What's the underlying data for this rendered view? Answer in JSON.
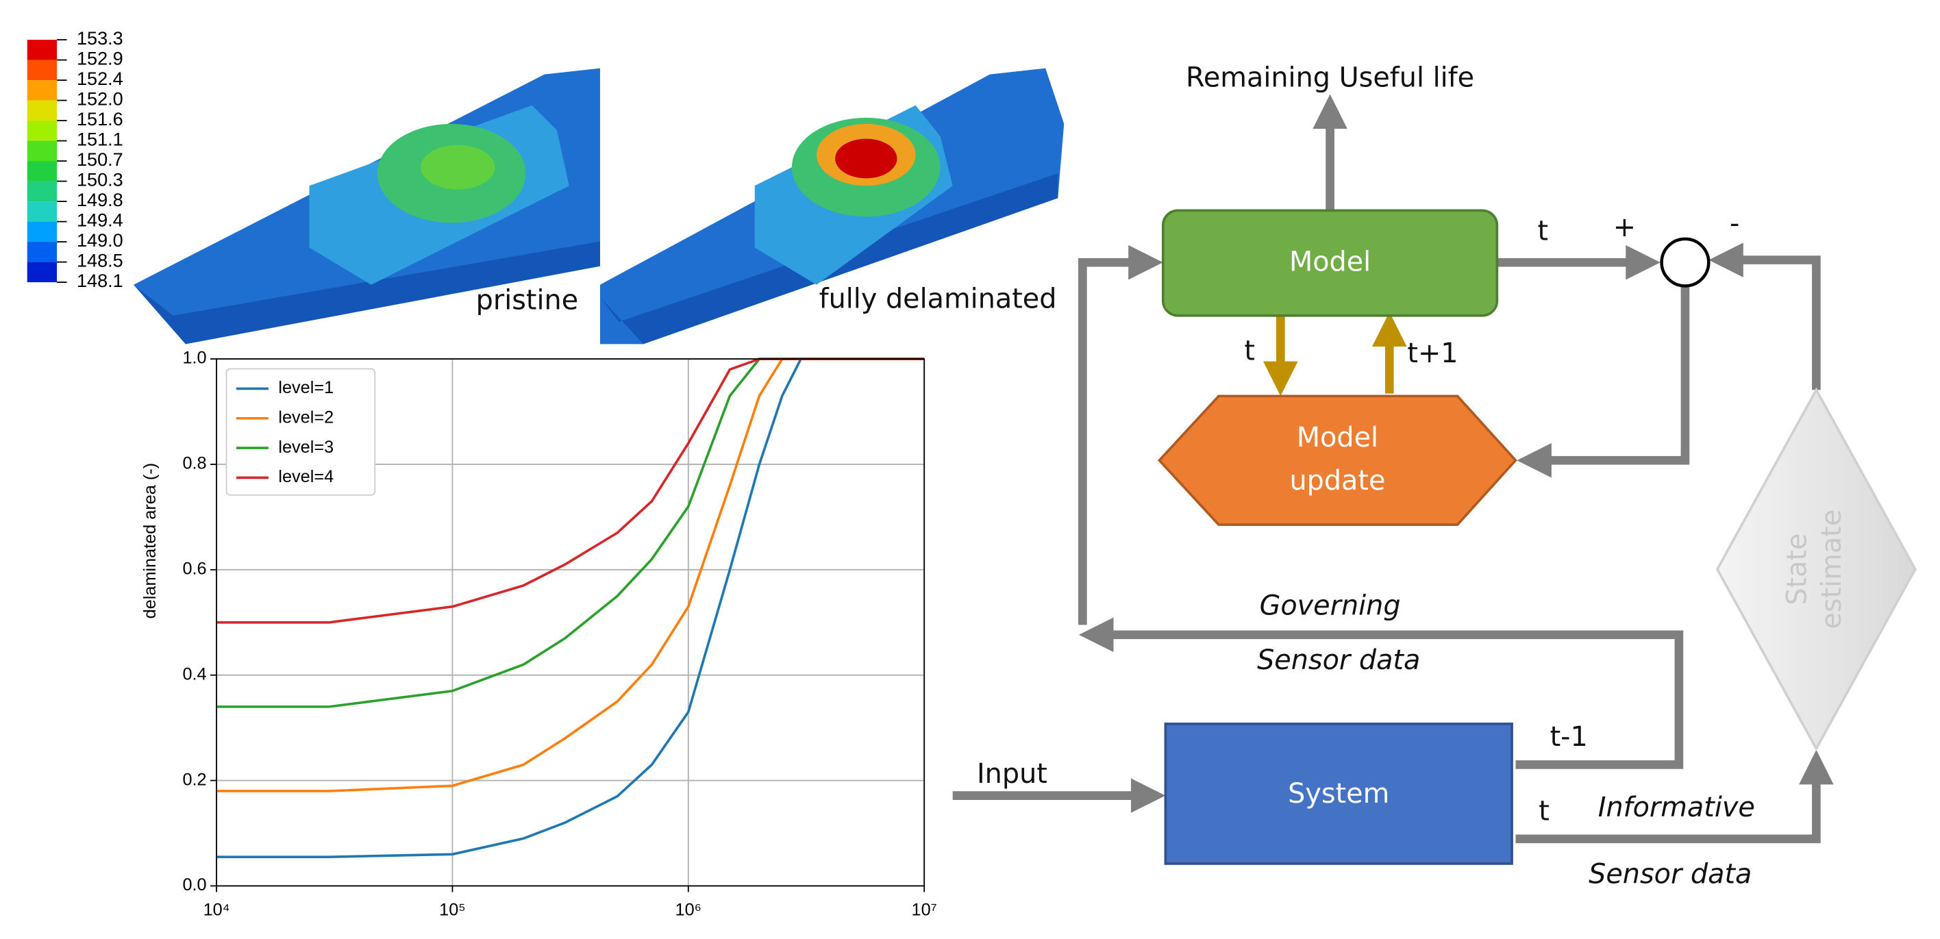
{
  "chart_data": {
    "type": "line",
    "ylabel": "delaminated area (-)",
    "x": [
      10000,
      30000,
      100000,
      200000,
      300000,
      500000,
      700000,
      1000000,
      1500000,
      2000000,
      2500000,
      3000000,
      10000000
    ],
    "series": [
      {
        "name": "level=1",
        "color": "#1f77b4",
        "values": [
          0.055,
          0.055,
          0.06,
          0.09,
          0.12,
          0.17,
          0.23,
          0.33,
          0.6,
          0.8,
          0.93,
          1.0,
          1.0
        ]
      },
      {
        "name": "level=2",
        "color": "#ff7f0e",
        "values": [
          0.18,
          0.18,
          0.19,
          0.23,
          0.28,
          0.35,
          0.42,
          0.53,
          0.76,
          0.93,
          1.0,
          1.0,
          1.0
        ]
      },
      {
        "name": "level=3",
        "color": "#2ca02c",
        "values": [
          0.34,
          0.34,
          0.37,
          0.42,
          0.47,
          0.55,
          0.62,
          0.72,
          0.93,
          1.0,
          1.0,
          1.0,
          1.0
        ]
      },
      {
        "name": "level=4",
        "color": "#d62728",
        "values": [
          0.5,
          0.5,
          0.53,
          0.57,
          0.61,
          0.67,
          0.73,
          0.84,
          0.98,
          1.0,
          1.0,
          1.0,
          1.0
        ]
      }
    ],
    "xscale": "log",
    "xlim": [
      10000,
      10000000
    ],
    "xticks": [
      {
        "value": 10000,
        "label": "10⁴"
      },
      {
        "value": 100000,
        "label": "10⁵"
      },
      {
        "value": 1000000,
        "label": "10⁶"
      },
      {
        "value": 10000000,
        "label": "10⁷"
      }
    ],
    "ylim": [
      0,
      1
    ],
    "yticks": [
      {
        "value": 0,
        "label": "0.0"
      },
      0.2,
      0.4,
      0.6,
      0.8,
      {
        "value": 1,
        "label": "1.0"
      }
    ],
    "grid": true,
    "legend": "upper-left"
  },
  "figure": {
    "colorbar": [
      "153.3",
      "152.9",
      "152.4",
      "152.0",
      "151.6",
      "151.1",
      "150.7",
      "150.3",
      "149.8",
      "149.4",
      "149.0",
      "148.5",
      "148.1"
    ],
    "captions": [
      "pristine",
      "fully delaminated"
    ]
  },
  "diagram": {
    "output": "Remaining Useful life",
    "model": "Model",
    "model_update": [
      "Model",
      "update"
    ],
    "system": "System",
    "state_estimate": [
      "State",
      "estimate"
    ],
    "labels": {
      "t_out": "t",
      "plus": "+",
      "minus": "-",
      "t_down": "t",
      "t_up": "t+1",
      "governing": "Governing",
      "sensor_data_1": "Sensor data",
      "input": "Input",
      "t_minus_1": "t-1",
      "t_sys": "t",
      "informative": "Informative",
      "sensor_data_2": "Sensor data"
    }
  }
}
